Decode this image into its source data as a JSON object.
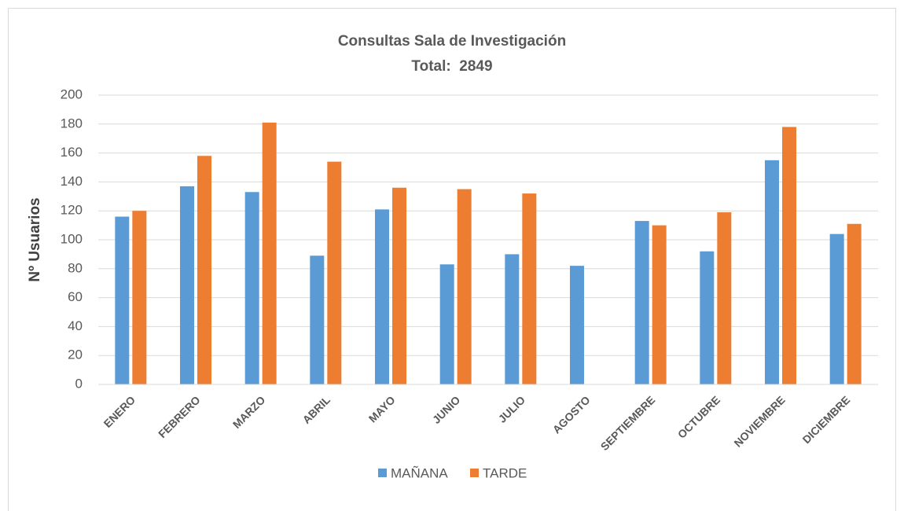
{
  "chart_data": {
    "type": "bar",
    "title": "Consultas Sala de Investigación",
    "subtitle": "Total:  2849",
    "y_label": "Nº Usuarios",
    "categories": [
      "ENERO",
      "FEBRERO",
      "MARZO",
      "ABRIL",
      "MAYO",
      "JUNIO",
      "JULIO",
      "AGOSTO",
      "SEPTIEMBRE",
      "OCTUBRE",
      "NOVIEMBRE",
      "DICIEMBRE"
    ],
    "series": [
      {
        "name": "MAÑANA",
        "color": "#5b9bd5",
        "values": [
          116,
          137,
          133,
          89,
          121,
          83,
          90,
          82,
          113,
          92,
          155,
          104
        ]
      },
      {
        "name": "TARDE",
        "color": "#ed7d31",
        "values": [
          120,
          158,
          181,
          154,
          136,
          135,
          132,
          0,
          110,
          119,
          178,
          111
        ]
      }
    ],
    "ylim": [
      0,
      200
    ],
    "yticks": [
      0,
      20,
      40,
      60,
      80,
      100,
      120,
      140,
      160,
      180,
      200
    ],
    "grid": true,
    "legend": "bottom"
  }
}
